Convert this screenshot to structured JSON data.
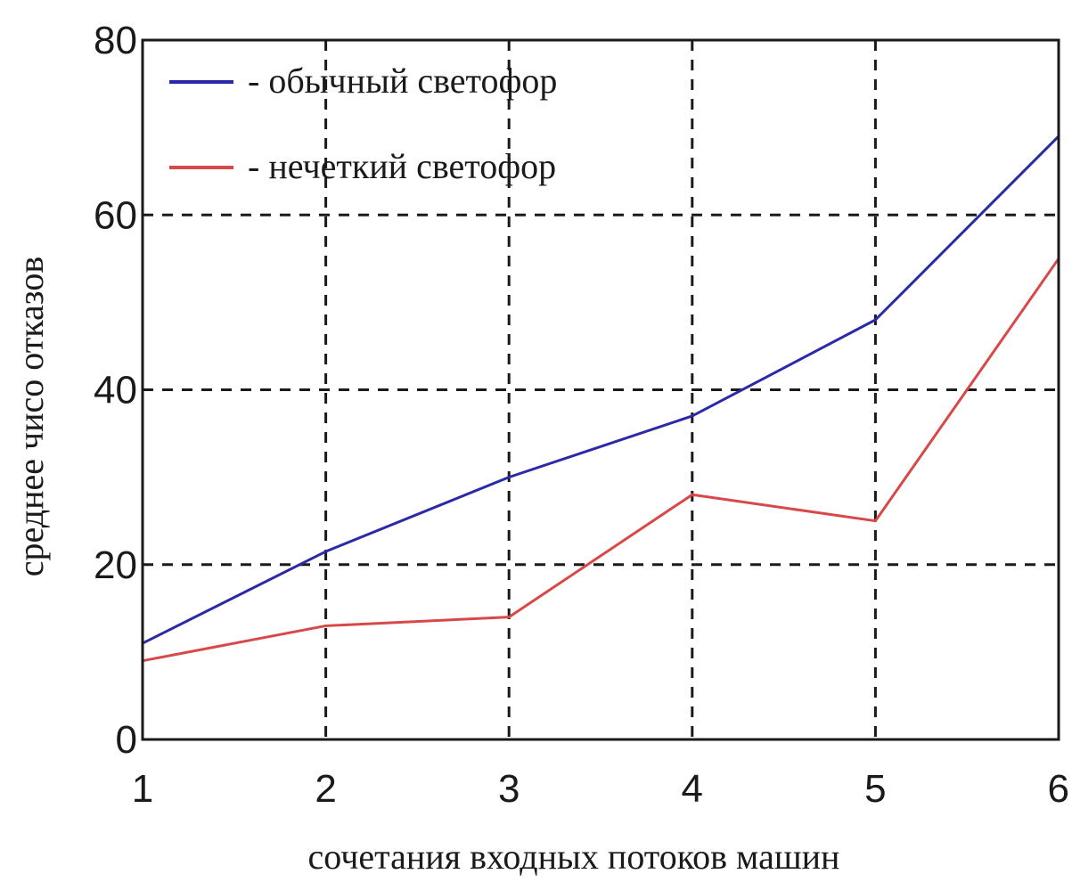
{
  "chart_data": {
    "type": "line",
    "title": "",
    "xlabel": "сочетания входных потоков машин",
    "ylabel": "среднее чисо отказов",
    "x": [
      1,
      2,
      3,
      4,
      5,
      6
    ],
    "xlim": [
      1,
      6
    ],
    "ylim": [
      0,
      80
    ],
    "xticks": [
      "1",
      "2",
      "3",
      "4",
      "5",
      "6"
    ],
    "yticks": [
      "0",
      "20",
      "40",
      "60",
      "80"
    ],
    "grid": true,
    "legend_position": "top-left",
    "series": [
      {
        "name": "- обычный светофор",
        "color": "#2a2aa8",
        "values": [
          11,
          21.5,
          30,
          37,
          48,
          69
        ]
      },
      {
        "name": "- нечеткий светофор",
        "color": "#d84848",
        "values": [
          9,
          13,
          14,
          28,
          25,
          55
        ]
      }
    ]
  }
}
